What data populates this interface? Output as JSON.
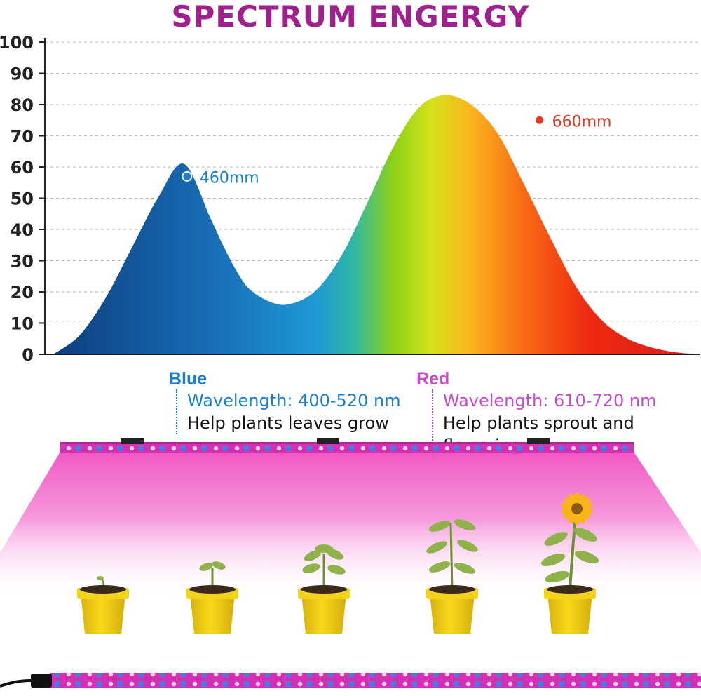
{
  "title": "SPECTRUM   ENGERGY",
  "colors": {
    "title": "#a0208c",
    "blue_accent": "#1a7fd0",
    "red_label": "#c54ec8",
    "peak_red": "#e6361e",
    "grow_light": "#f04fbf",
    "pot": "#f1cf16"
  },
  "chart_data": {
    "type": "area",
    "title": "SPECTRUM   ENGERGY",
    "xlabel": "",
    "ylabel": "",
    "ylim": [
      0,
      100
    ],
    "yticks": [
      0,
      10,
      20,
      30,
      40,
      50,
      60,
      70,
      80,
      90,
      100
    ],
    "grid": true,
    "series": [
      {
        "x": [
          0,
          4,
          8,
          12,
          16,
          20,
          24,
          26,
          28,
          30,
          33,
          36,
          40,
          44,
          48,
          52,
          56,
          60,
          64,
          68,
          72,
          76,
          80,
          84,
          88,
          92,
          96,
          100
        ],
        "values": [
          0,
          6,
          18,
          34,
          50,
          61,
          44,
          35,
          27,
          21,
          17,
          16,
          20,
          31,
          48,
          66,
          79,
          83,
          80,
          71,
          55,
          38,
          22,
          11,
          5,
          2,
          0.5,
          0
        ]
      }
    ],
    "annotations": [
      {
        "label": "460mm",
        "x": 20.5,
        "y": 57
      },
      {
        "label": "660mm",
        "x": 74.5,
        "y": 75
      }
    ]
  },
  "bands": {
    "blue": {
      "title": "Blue",
      "wavelength": "Wavelength: 400-520 nm",
      "description": "Help plants leaves grow"
    },
    "red": {
      "title": "Red",
      "wavelength": "Wavelength: 610-720 nm",
      "description": "Help plants sprout and flowering"
    }
  },
  "plants": [
    {
      "stage": "seed"
    },
    {
      "stage": "sprout"
    },
    {
      "stage": "seedling"
    },
    {
      "stage": "young-plant"
    },
    {
      "stage": "flowering"
    }
  ]
}
